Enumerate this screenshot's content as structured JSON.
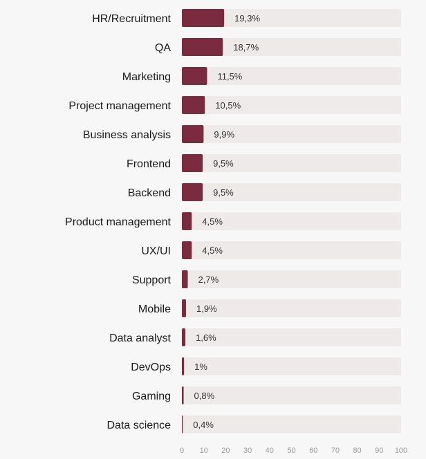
{
  "chart_data": {
    "type": "bar",
    "orientation": "horizontal",
    "categories": [
      "HR/Recruitment",
      "QA",
      "Marketing",
      "Project management",
      "Business analysis",
      "Frontend",
      "Backend",
      "Product management",
      "UX/UI",
      "Support",
      "Mobile",
      "Data analyst",
      "DevOps",
      "Gaming",
      "Data science"
    ],
    "values": [
      19.3,
      18.7,
      11.5,
      10.5,
      9.9,
      9.5,
      9.5,
      4.5,
      4.5,
      2.7,
      1.9,
      1.6,
      1,
      0.8,
      0.4
    ],
    "value_labels": [
      "19,3%",
      "18,7%",
      "11,5%",
      "10,5%",
      "9,9%",
      "9,5%",
      "9,5%",
      "4,5%",
      "4,5%",
      "2,7%",
      "1,9%",
      "1,6%",
      "1%",
      "0,8%",
      "0,4%"
    ],
    "xlim": [
      0,
      100
    ],
    "xticks": [
      0,
      10,
      20,
      30,
      40,
      50,
      60,
      70,
      80,
      90,
      100
    ],
    "title": "",
    "xlabel": "",
    "ylabel": "",
    "bar_color": "#7b2b3f",
    "track_color": "#eeeaea",
    "grid": false,
    "legend": null
  }
}
